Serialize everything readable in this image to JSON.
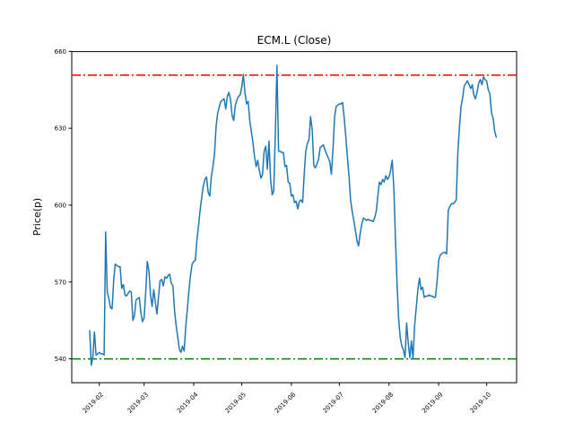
{
  "figure": {
    "background": "#ffffff"
  },
  "chart_data": {
    "type": "line",
    "title": "ECM.L (Close)",
    "xlabel": "",
    "ylabel": "Price(p)",
    "grid": false,
    "legend": "none",
    "yticks": [
      540,
      570,
      600,
      630,
      660
    ],
    "ylim": [
      530.7,
      659.9
    ],
    "xticks": {
      "labels": [
        "2019-02",
        "2019-03",
        "2019-04",
        "2019-05",
        "2019-06",
        "2019-07",
        "2019-08",
        "2019-09",
        "2019-10"
      ],
      "day_offsets": [
        6,
        34,
        65,
        95,
        126,
        156,
        187,
        218,
        248
      ],
      "rotation_deg": 45
    },
    "xlim_days": [
      -11.2,
      266.7
    ],
    "hlines": [
      {
        "name": "upper-band",
        "value": 650.7,
        "color": "#ff0000",
        "linestyle": "dashdot"
      },
      {
        "name": "lower-band",
        "value": 540.0,
        "color": "#008000",
        "linestyle": "dashdot"
      }
    ],
    "series": [
      {
        "name": "Close",
        "color": "#1f77b4",
        "points": [
          [
            0,
            551
          ],
          [
            1,
            537.5
          ],
          [
            2,
            541
          ],
          [
            3,
            550.5
          ],
          [
            4,
            541.5
          ],
          [
            5,
            542
          ],
          [
            6,
            542.5
          ],
          [
            7,
            542
          ],
          [
            8,
            542
          ],
          [
            9,
            541.5
          ],
          [
            10,
            589.5
          ],
          [
            11,
            566
          ],
          [
            12,
            563.5
          ],
          [
            13,
            560
          ],
          [
            14,
            559.5
          ],
          [
            15,
            571
          ],
          [
            16,
            577
          ],
          [
            17,
            576.5
          ],
          [
            18,
            576
          ],
          [
            19,
            576
          ],
          [
            20,
            567.5
          ],
          [
            21,
            569
          ],
          [
            22,
            565
          ],
          [
            23,
            564.5
          ],
          [
            24,
            565.5
          ],
          [
            25,
            566.5
          ],
          [
            26,
            566
          ],
          [
            27,
            555
          ],
          [
            28,
            557
          ],
          [
            29,
            563
          ],
          [
            30,
            563.5
          ],
          [
            31,
            564
          ],
          [
            32,
            558
          ],
          [
            33,
            554.5
          ],
          [
            34,
            556
          ],
          [
            35,
            566
          ],
          [
            36,
            578
          ],
          [
            37,
            574.5
          ],
          [
            38,
            565
          ],
          [
            39,
            560.5
          ],
          [
            40,
            567
          ],
          [
            41,
            562
          ],
          [
            42,
            557.5
          ],
          [
            43,
            564
          ],
          [
            44,
            570.5
          ],
          [
            45,
            571
          ],
          [
            46,
            568.5
          ],
          [
            47,
            572
          ],
          [
            48,
            571.5
          ],
          [
            49,
            572.5
          ],
          [
            50,
            573
          ],
          [
            51,
            569.5
          ],
          [
            52,
            568.5
          ],
          [
            53,
            559
          ],
          [
            54,
            553
          ],
          [
            55,
            548.5
          ],
          [
            56,
            544
          ],
          [
            57,
            542.5
          ],
          [
            58,
            545
          ],
          [
            59,
            543
          ],
          [
            60,
            552.5
          ],
          [
            61,
            559.5
          ],
          [
            62,
            566.5
          ],
          [
            63,
            572.5
          ],
          [
            64,
            577
          ],
          [
            65,
            578
          ],
          [
            66,
            578.5
          ],
          [
            67,
            586.5
          ],
          [
            68,
            592
          ],
          [
            69,
            598
          ],
          [
            70,
            603
          ],
          [
            71,
            607.5
          ],
          [
            72,
            610
          ],
          [
            73,
            611
          ],
          [
            74,
            605
          ],
          [
            75,
            603.5
          ],
          [
            76,
            611
          ],
          [
            77,
            615
          ],
          [
            78,
            620
          ],
          [
            79,
            631
          ],
          [
            80,
            636
          ],
          [
            81,
            638.5
          ],
          [
            82,
            640.5
          ],
          [
            83,
            641
          ],
          [
            84,
            641.5
          ],
          [
            85,
            637.5
          ],
          [
            86,
            642.5
          ],
          [
            87,
            644
          ],
          [
            88,
            641
          ],
          [
            89,
            635
          ],
          [
            90,
            633
          ],
          [
            91,
            639
          ],
          [
            92,
            641
          ],
          [
            93,
            642.5
          ],
          [
            94,
            643
          ],
          [
            95,
            646
          ],
          [
            96,
            651
          ],
          [
            97,
            644
          ],
          [
            98,
            639.5
          ],
          [
            99,
            640.5
          ],
          [
            100,
            633
          ],
          [
            101,
            628.5
          ],
          [
            102,
            624.5
          ],
          [
            103,
            619
          ],
          [
            104,
            615
          ],
          [
            105,
            617.5
          ],
          [
            106,
            613.5
          ],
          [
            107,
            610.5
          ],
          [
            108,
            612
          ],
          [
            109,
            621
          ],
          [
            110,
            623
          ],
          [
            111,
            614
          ],
          [
            112,
            625
          ],
          [
            113,
            610
          ],
          [
            114,
            604
          ],
          [
            115,
            605.5
          ],
          [
            116,
            628
          ],
          [
            117,
            654.5
          ],
          [
            118,
            621
          ],
          [
            119,
            621
          ],
          [
            120,
            620.5
          ],
          [
            121,
            620.5
          ],
          [
            122,
            615
          ],
          [
            123,
            615.5
          ],
          [
            124,
            609
          ],
          [
            125,
            608.5
          ],
          [
            126,
            603.5
          ],
          [
            127,
            604
          ],
          [
            128,
            601
          ],
          [
            129,
            601.5
          ],
          [
            130,
            598.5
          ],
          [
            131,
            601.5
          ],
          [
            132,
            602
          ],
          [
            133,
            601
          ],
          [
            134,
            612
          ],
          [
            135,
            621
          ],
          [
            136,
            624
          ],
          [
            137,
            625.5
          ],
          [
            138,
            634.5
          ],
          [
            139,
            629.5
          ],
          [
            140,
            615.5
          ],
          [
            141,
            614.5
          ],
          [
            142,
            616
          ],
          [
            143,
            618
          ],
          [
            144,
            622.5
          ],
          [
            145,
            623
          ],
          [
            146,
            623.5
          ],
          [
            147,
            621.5
          ],
          [
            148,
            620
          ],
          [
            149,
            618.5
          ],
          [
            150,
            617
          ],
          [
            151,
            612
          ],
          [
            152,
            622
          ],
          [
            153,
            634.5
          ],
          [
            154,
            638.5
          ],
          [
            155,
            639
          ],
          [
            156,
            639.5
          ],
          [
            157,
            639.5
          ],
          [
            158,
            640
          ],
          [
            159,
            634
          ],
          [
            160,
            626.5
          ],
          [
            161,
            619
          ],
          [
            162,
            611.5
          ],
          [
            163,
            602
          ],
          [
            164,
            597.5
          ],
          [
            165,
            594
          ],
          [
            166,
            590
          ],
          [
            167,
            586
          ],
          [
            168,
            584
          ],
          [
            169,
            589
          ],
          [
            170,
            592.5
          ],
          [
            171,
            595
          ],
          [
            172,
            594.5
          ],
          [
            173,
            594
          ],
          [
            174,
            594.5
          ],
          [
            175,
            594
          ],
          [
            176,
            594
          ],
          [
            177,
            593.5
          ],
          [
            178,
            595
          ],
          [
            179,
            597.5
          ],
          [
            180,
            603.5
          ],
          [
            181,
            609
          ],
          [
            182,
            608
          ],
          [
            183,
            610
          ],
          [
            184,
            609
          ],
          [
            185,
            611.5
          ],
          [
            186,
            610
          ],
          [
            187,
            611
          ],
          [
            188,
            613.5
          ],
          [
            189,
            617.5
          ],
          [
            190,
            607
          ],
          [
            191,
            587
          ],
          [
            192,
            569.5
          ],
          [
            193,
            555.5
          ],
          [
            194,
            548.5
          ],
          [
            195,
            545
          ],
          [
            196,
            543.5
          ],
          [
            197,
            540.5
          ],
          [
            198,
            554
          ],
          [
            199,
            546
          ],
          [
            200,
            540.5
          ],
          [
            201,
            547
          ],
          [
            202,
            540
          ],
          [
            203,
            553
          ],
          [
            204,
            560
          ],
          [
            205,
            567
          ],
          [
            206,
            571.5
          ],
          [
            207,
            567
          ],
          [
            208,
            568
          ],
          [
            209,
            564
          ],
          [
            210,
            564.5
          ],
          [
            211,
            564.5
          ],
          [
            212,
            565
          ],
          [
            213,
            564.5
          ],
          [
            214,
            564.5
          ],
          [
            215,
            564
          ],
          [
            216,
            564
          ],
          [
            217,
            570
          ],
          [
            218,
            578.5
          ],
          [
            219,
            580.5
          ],
          [
            220,
            581
          ],
          [
            221,
            581.5
          ],
          [
            222,
            581.5
          ],
          [
            223,
            581
          ],
          [
            224,
            598
          ],
          [
            225,
            599.5
          ],
          [
            226,
            600.5
          ],
          [
            227,
            600.5
          ],
          [
            228,
            601
          ],
          [
            229,
            602
          ],
          [
            230,
            620.5
          ],
          [
            231,
            630.5
          ],
          [
            232,
            638.5
          ],
          [
            233,
            642
          ],
          [
            234,
            646.5
          ],
          [
            235,
            647.5
          ],
          [
            236,
            648.5
          ],
          [
            237,
            647
          ],
          [
            238,
            645.5
          ],
          [
            239,
            647
          ],
          [
            240,
            643
          ],
          [
            241,
            641.5
          ],
          [
            242,
            644
          ],
          [
            243,
            647.5
          ],
          [
            244,
            649
          ],
          [
            245,
            647
          ],
          [
            246,
            650
          ],
          [
            247,
            649
          ],
          [
            248,
            648.5
          ],
          [
            249,
            645
          ],
          [
            250,
            643.5
          ],
          [
            251,
            636
          ],
          [
            252,
            634
          ],
          [
            253,
            629
          ],
          [
            254,
            626.5
          ]
        ]
      }
    ]
  }
}
